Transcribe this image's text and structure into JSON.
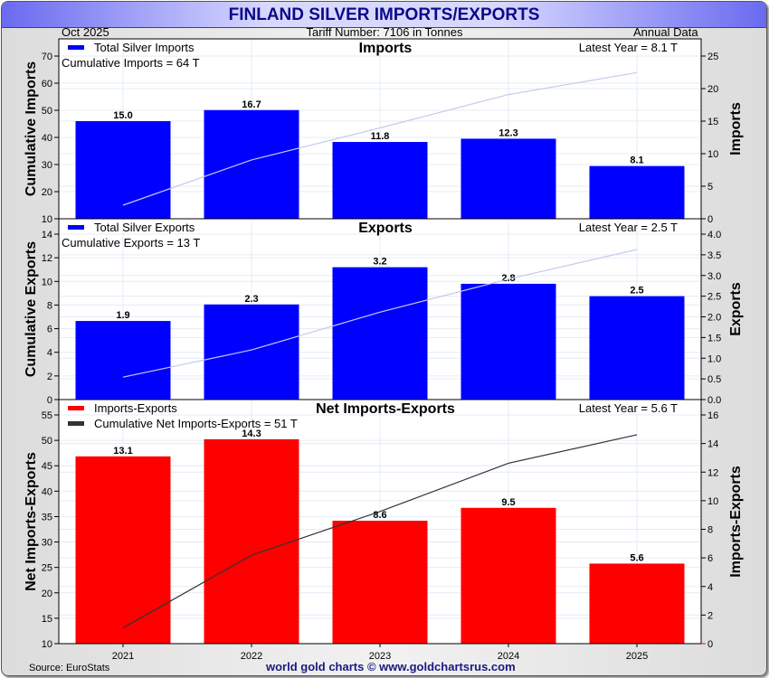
{
  "header": {
    "title": "FINLAND SILVER IMPORTS/EXPORTS",
    "date": "Oct  2025",
    "tariff": "Tariff Number: 7106 in Tonnes",
    "frequency": "Annual Data"
  },
  "footer": {
    "source": "Source: EuroStats",
    "brand": "world gold charts © www.goldchartsrus.com"
  },
  "colors": {
    "bars_primary": "#0000ff",
    "bars_net": "#ff0000",
    "cumulative_light": "#c8c8f0",
    "cumulative_dark": "#333333",
    "title_text": "#0a0a8a"
  },
  "chart_data": [
    {
      "type": "bar",
      "title": "Imports",
      "categories": [
        "2021",
        "2022",
        "2023",
        "2024",
        "2025"
      ],
      "series": [
        {
          "name": "Total Silver Imports",
          "axis": "right",
          "values": [
            15.0,
            16.7,
            11.8,
            12.3,
            8.1
          ],
          "labels": [
            "15.0",
            "16.7",
            "11.8",
            "12.3",
            "8.1"
          ]
        },
        {
          "name": "Cumulative Imports",
          "axis": "left",
          "kind": "line",
          "values": [
            15.0,
            31.7,
            43.5,
            55.8,
            63.9
          ]
        }
      ],
      "legend": [
        "Total Silver Imports"
      ],
      "annotations": {
        "cumulative": "Cumulative Imports = 64 T",
        "latest": "Latest Year = 8.1 T"
      },
      "ylabel_left": "Cumulative Imports",
      "ylabel_right": "Imports",
      "ylim_left": [
        10,
        70
      ],
      "yticks_left": [
        10,
        20,
        30,
        40,
        50,
        60,
        70
      ],
      "ylim_right": [
        0,
        25
      ],
      "yticks_right": [
        0,
        5,
        10,
        15,
        20,
        25
      ],
      "legend_position": "top-left"
    },
    {
      "type": "bar",
      "title": "Exports",
      "categories": [
        "2021",
        "2022",
        "2023",
        "2024",
        "2025"
      ],
      "series": [
        {
          "name": "Total Silver Exports",
          "axis": "right",
          "values": [
            1.9,
            2.3,
            3.2,
            2.8,
            2.5
          ],
          "labels": [
            "1.9",
            "2.3",
            "3.2",
            "2.8",
            "2.5"
          ]
        },
        {
          "name": "Cumulative Exports",
          "axis": "left",
          "kind": "line",
          "values": [
            1.9,
            4.2,
            7.4,
            10.2,
            12.7
          ]
        }
      ],
      "legend": [
        "Total Silver Exports"
      ],
      "annotations": {
        "cumulative": "Cumulative Exports = 13 T",
        "latest": "Latest Year = 2.5 T"
      },
      "ylabel_left": "Cumulative Exports",
      "ylabel_right": "Exports",
      "ylim_left": [
        0,
        14
      ],
      "yticks_left": [
        0,
        2,
        4,
        6,
        8,
        10,
        12,
        14
      ],
      "ylim_right": [
        0,
        4
      ],
      "yticks_right": [
        "0.0",
        "0.5",
        "1.0",
        "1.5",
        "2.0",
        "2.5",
        "3.0",
        "3.5",
        "4.0"
      ],
      "legend_position": "top-left"
    },
    {
      "type": "bar",
      "title": "Net Imports-Exports",
      "categories": [
        "2021",
        "2022",
        "2023",
        "2024",
        "2025"
      ],
      "series": [
        {
          "name": "Imports-Exports",
          "axis": "right",
          "values": [
            13.1,
            14.3,
            8.6,
            9.5,
            5.6
          ],
          "labels": [
            "13.1",
            "14.3",
            "8.6",
            "9.5",
            "5.6"
          ]
        },
        {
          "name": "Cumulative Net Imports-Exports",
          "axis": "left",
          "kind": "line",
          "values": [
            13.1,
            27.4,
            36.0,
            45.5,
            51.1
          ]
        }
      ],
      "legend": [
        "Imports-Exports",
        "Cumulative Net Imports-Exports = 51 T"
      ],
      "annotations": {
        "latest": "Latest Year = 5.6 T"
      },
      "ylabel_left": "Net Imports-Exports",
      "ylabel_right": "Imports-Exports",
      "ylim_left": [
        10,
        55
      ],
      "yticks_left": [
        10,
        15,
        20,
        25,
        30,
        35,
        40,
        45,
        50,
        55
      ],
      "ylim_right": [
        0,
        16
      ],
      "yticks_right": [
        0,
        2,
        4,
        6,
        8,
        10,
        12,
        14,
        16
      ],
      "xticks": [
        "2021",
        "2022",
        "2023",
        "2024",
        "2025"
      ],
      "legend_position": "top-left"
    }
  ]
}
